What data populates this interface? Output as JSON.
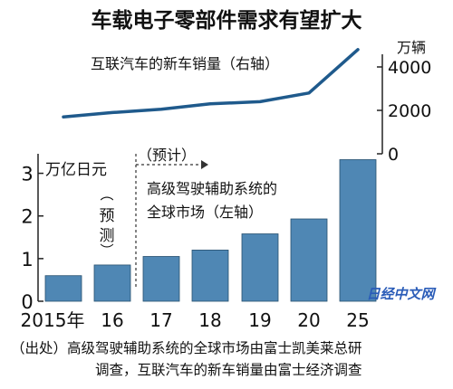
{
  "chart_data": {
    "type": "bar",
    "title": "车载电子零部件需求有望扩大",
    "categories": [
      "2015年",
      "16",
      "17",
      "18",
      "19",
      "20",
      "25"
    ],
    "bar_series": {
      "name": "高级驾驶辅助系统的全球市场（左轴）",
      "unit": "万亿日元",
      "values": [
        0.6,
        0.85,
        1.05,
        1.2,
        1.58,
        1.93,
        3.32
      ],
      "color": "#4f87b4",
      "ylim": [
        0,
        3.5
      ],
      "ticks": [
        "0",
        "1",
        "2",
        "3"
      ]
    },
    "line_series": {
      "name": "互联汽车的新车销量（右轴）",
      "unit": "万辆",
      "values": [
        1700,
        1900,
        2050,
        2300,
        2400,
        2800,
        4800
      ],
      "color": "#1f5a8c",
      "ylim": [
        0,
        5000
      ],
      "ticks": [
        "0",
        "2000",
        "4000"
      ]
    },
    "forecast_note": "（预测）",
    "forecast_range_label": "（预计）",
    "source": "（出处）高级驾驶辅助系统的全球市场由富士凯美莱总研调查，互联汽车的新车销量由富士经济调查",
    "source_lines": [
      "（出处）高级驾驶辅助系统的全球市场由富士凯美莱总研",
      "调查，互联汽车的新车销量由富士经济调查"
    ],
    "watermark": "日经中文网"
  }
}
